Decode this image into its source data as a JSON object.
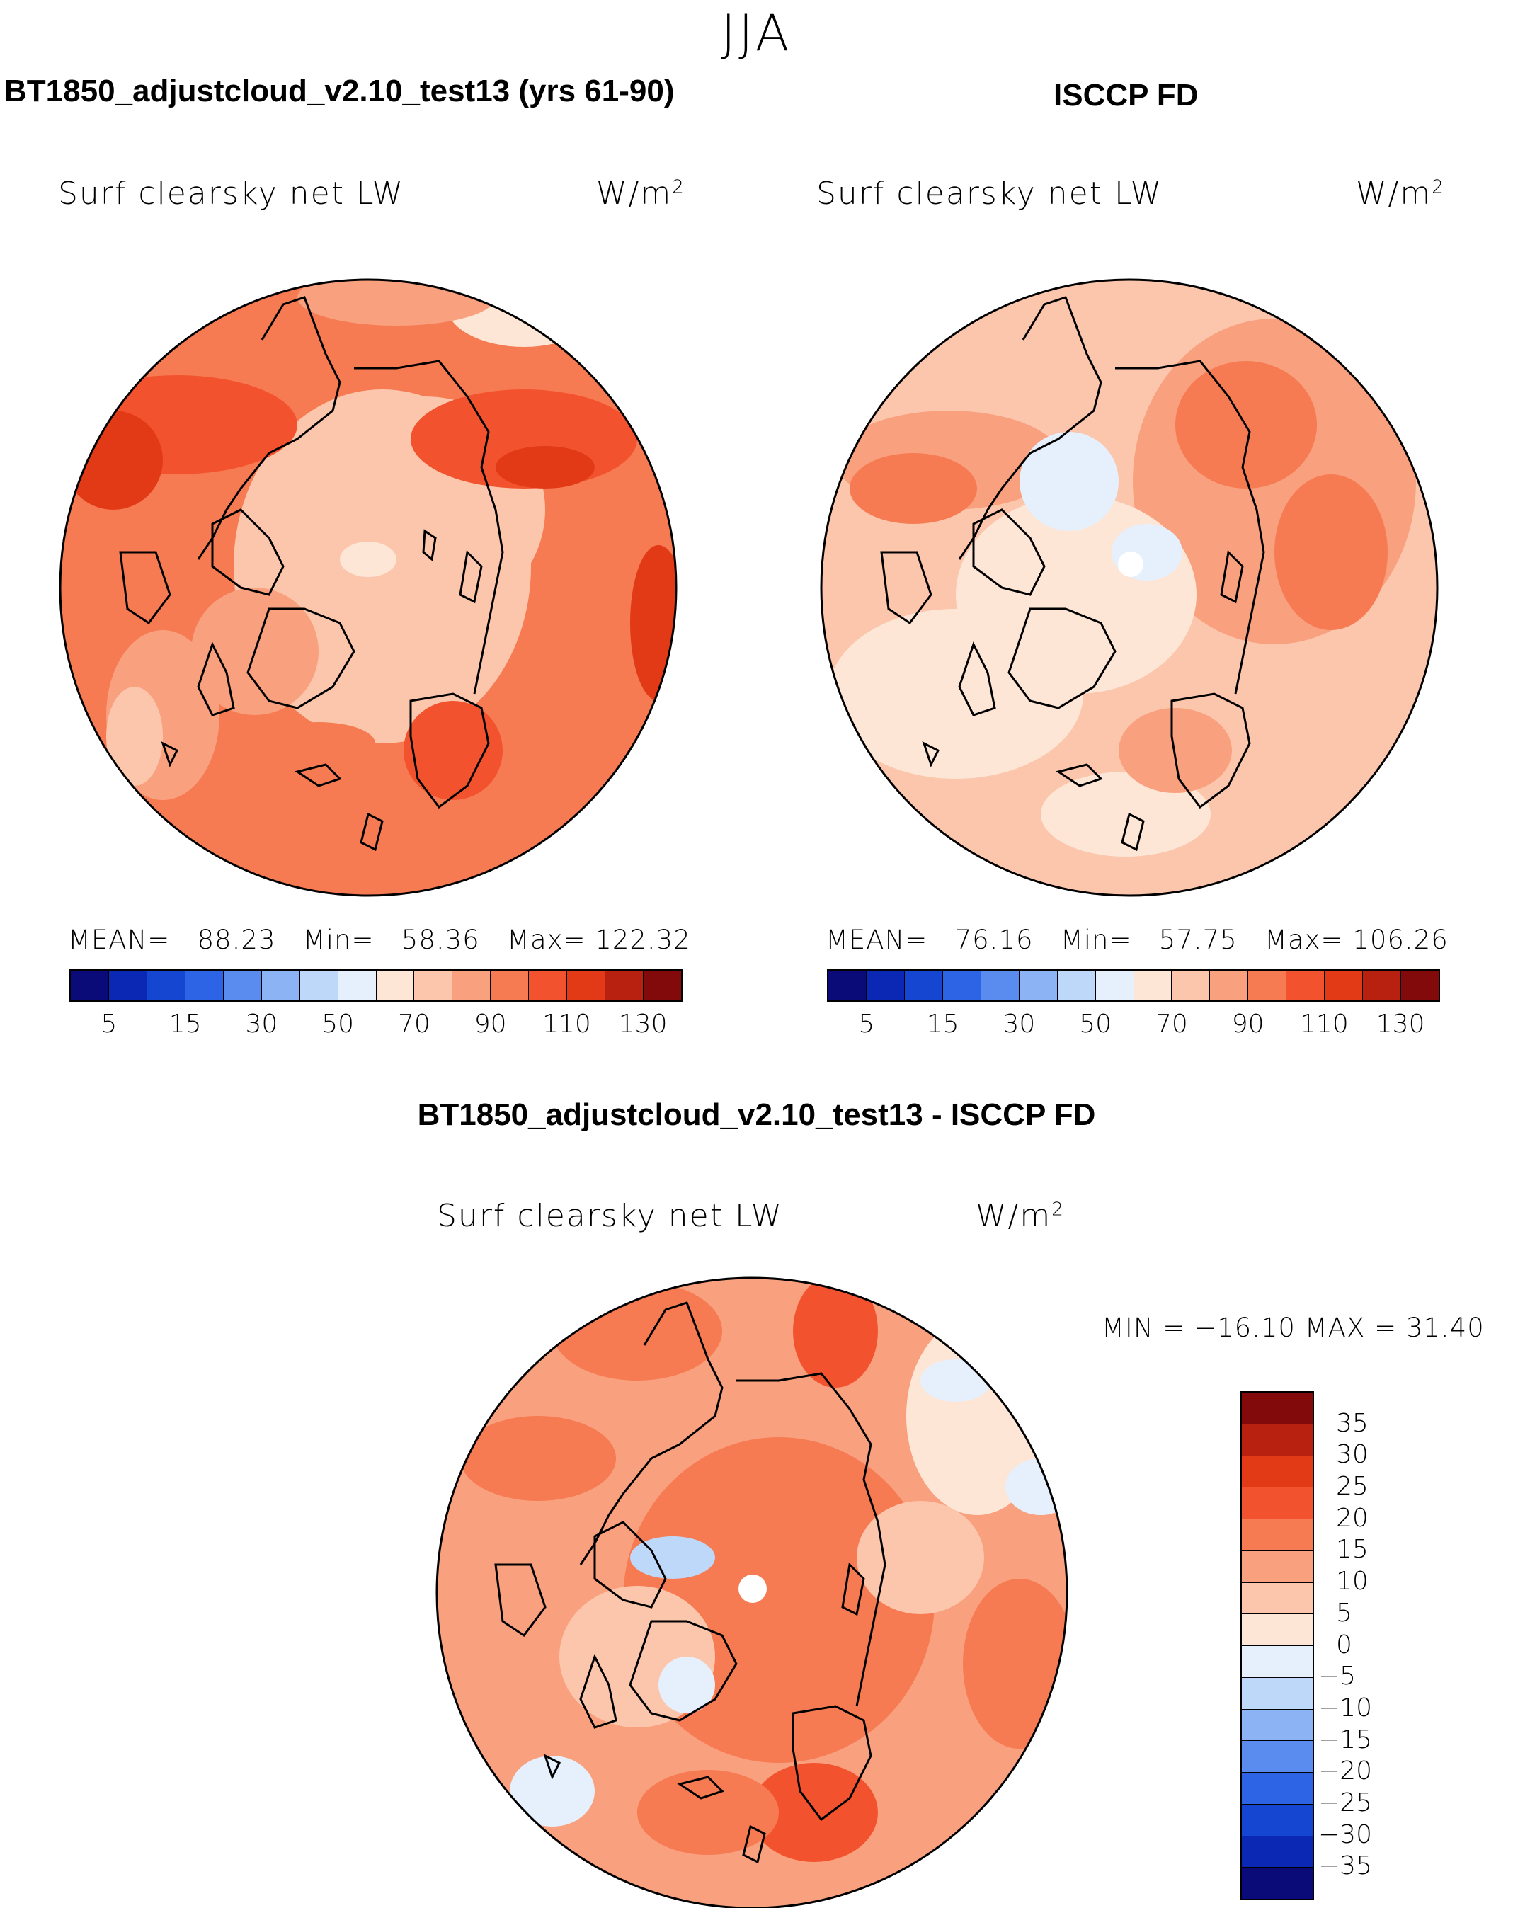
{
  "season": "JJA",
  "panels": {
    "model": {
      "title": "BT1850_adjustcloud_v2.10_test13 (yrs 61-90)",
      "variable": "Surf clearsky net LW",
      "units_base": "W/m",
      "units_exp": "2",
      "stats": {
        "mean_label": "MEAN=",
        "mean": "88.23",
        "min_label": "Min=",
        "min": "58.36",
        "max_label": "Max=",
        "max": "122.32"
      }
    },
    "obs": {
      "title": "ISCCP FD",
      "variable": "Surf clearsky net LW",
      "units_base": "W/m",
      "units_exp": "2",
      "stats": {
        "mean_label": "MEAN=",
        "mean": "76.16",
        "min_label": "Min=",
        "min": "57.75",
        "max_label": "Max=",
        "max": "106.26"
      }
    },
    "diff": {
      "title": "BT1850_adjustcloud_v2.10_test13 - ISCCP FD",
      "variable": "Surf clearsky net LW",
      "units_base": "W/m",
      "units_exp": "2",
      "minmax": "MIN = −16.10 MAX =  31.40"
    }
  },
  "colorbar_main": {
    "colors": [
      "#0a0a78",
      "#0a28b4",
      "#1446d2",
      "#2d64e6",
      "#5a8cf0",
      "#8cb4f5",
      "#bed8fa",
      "#e6f0fc",
      "#fde6d6",
      "#fcc6ac",
      "#f9a07e",
      "#f67a52",
      "#f2532e",
      "#e23a16",
      "#b82010",
      "#820a0a"
    ],
    "tick_labels": [
      "5",
      "15",
      "30",
      "50",
      "70",
      "90",
      "110",
      "130"
    ]
  },
  "colorbar_diff": {
    "colors": [
      "#820a0a",
      "#b82010",
      "#e23a16",
      "#f2532e",
      "#f67a52",
      "#f9a07e",
      "#fcc6ac",
      "#fde6d6",
      "#e6f0fc",
      "#bed8fa",
      "#8cb4f5",
      "#5a8cf0",
      "#2d64e6",
      "#1446d2",
      "#0a28b4",
      "#0a0a78"
    ],
    "tick_labels": [
      "35",
      "30",
      "25",
      "20",
      "15",
      "10",
      "5",
      "0",
      "−5",
      "−10",
      "−15",
      "−20",
      "−25",
      "−30",
      "−35"
    ]
  }
}
